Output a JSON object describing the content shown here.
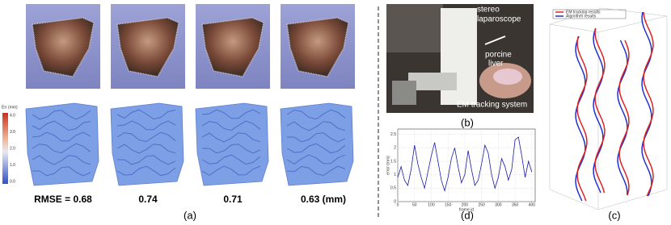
{
  "panel_a": {
    "colorbar": {
      "title": "Err (mm)",
      "ticks": [
        "4.0",
        "3.0",
        "2.0",
        "1.0",
        "0.0"
      ]
    },
    "rmse_labels": [
      "RMSE = 0.68",
      "0.74",
      "0.71",
      "0.63 (mm)"
    ],
    "caption": "(a)"
  },
  "panel_b": {
    "annotations": [
      [
        "stereo",
        "laparoscope"
      ],
      [
        "porcine",
        "liver"
      ],
      [
        "EM tracking system"
      ]
    ],
    "caption": "(b)"
  },
  "panel_c": {
    "legend": [
      "EM tracking results",
      "Algorithm results"
    ],
    "caption": "(c)"
  },
  "chart_data": {
    "type": "line",
    "xlabel": "frame id",
    "ylabel": "error (mm)",
    "color": "#1a1aa8",
    "x": [
      0,
      10,
      20,
      30,
      40,
      50,
      60,
      70,
      80,
      90,
      100,
      110,
      120,
      130,
      140,
      150,
      160,
      170,
      180,
      190,
      200,
      210,
      220,
      230,
      240,
      250,
      260,
      270,
      280,
      290,
      300,
      310,
      320,
      330,
      340,
      350,
      360,
      370,
      380,
      390,
      400
    ],
    "values": [
      0.9,
      1.3,
      0.8,
      0.6,
      1.2,
      2.1,
      1.4,
      0.9,
      0.5,
      1.1,
      1.7,
      2.2,
      1.5,
      0.8,
      0.4,
      0.9,
      1.6,
      2.0,
      1.3,
      0.7,
      1.0,
      1.9,
      1.2,
      0.6,
      0.8,
      1.4,
      2.1,
      1.8,
      1.0,
      0.5,
      0.9,
      1.6,
      1.3,
      0.8,
      1.2,
      2.3,
      2.4,
      1.7,
      0.9,
      1.5,
      1.1
    ],
    "xlim": [
      0,
      410
    ],
    "ylim": [
      0,
      2.7
    ],
    "xticks": [
      0,
      50,
      100,
      150,
      200,
      250,
      300,
      350,
      400
    ],
    "yticks": [
      0,
      0.5,
      1,
      1.5,
      2,
      2.5
    ],
    "caption": "(d)"
  }
}
